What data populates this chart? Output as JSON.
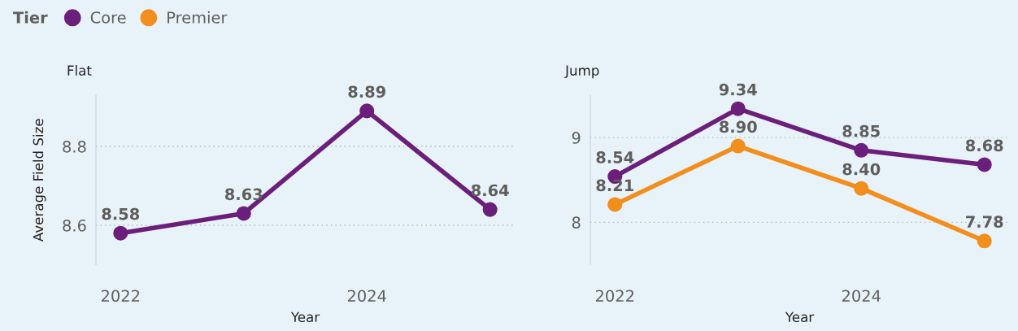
{
  "chart_data": [
    {
      "type": "line",
      "title": "Flat",
      "xlabel": "Year",
      "ylabel": "Average Field Size",
      "x": [
        2022,
        2023,
        2024,
        2025
      ],
      "xlim": [
        2021.8,
        2025.2
      ],
      "xticks": [
        2022,
        2024
      ],
      "ylim": [
        8.5,
        8.93
      ],
      "yticks": [
        8.6,
        8.8
      ],
      "grid": "y",
      "marker": "circle",
      "series": [
        {
          "name": "Core",
          "color": "#6b1f7b",
          "values": [
            8.58,
            8.63,
            8.89,
            8.64
          ],
          "value_labels": [
            "8.58",
            "8.63",
            "8.89",
            "8.64"
          ]
        }
      ]
    },
    {
      "type": "line",
      "title": "Jump",
      "xlabel": "Year",
      "x": [
        2022,
        2023,
        2024,
        2025
      ],
      "xlim": [
        2021.8,
        2025.2
      ],
      "xticks": [
        2022,
        2024
      ],
      "ylim": [
        7.5,
        9.5
      ],
      "yticks": [
        8,
        9
      ],
      "grid": "y",
      "marker": "circle",
      "legend": "top left",
      "legend_title": "Tier",
      "series": [
        {
          "name": "Core",
          "color": "#6b1f7b",
          "values": [
            8.54,
            9.34,
            8.85,
            8.68
          ],
          "value_labels": [
            "8.54",
            "9.34",
            "8.85",
            "8.68"
          ]
        },
        {
          "name": "Premier",
          "color": "#f28e1c",
          "values": [
            8.21,
            8.9,
            8.4,
            7.78
          ],
          "value_labels": [
            "8.21",
            "8.90",
            "8.40",
            "7.78"
          ]
        }
      ]
    }
  ]
}
